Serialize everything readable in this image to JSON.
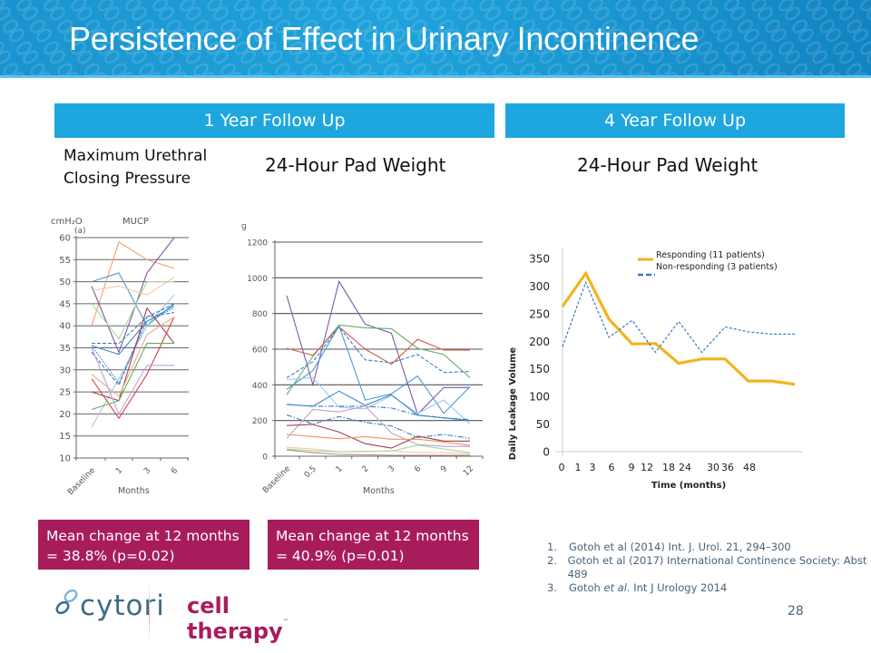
{
  "header": {
    "title": "Persistence of Effect in Urinary Incontinence"
  },
  "sections": {
    "one_year_label": "1 Year Follow Up",
    "four_year_label": "4 Year Follow Up"
  },
  "subtitles": {
    "mucp_line1": "Maximum Urethral",
    "mucp_line2": "Closing Pressure",
    "pad_weight_1yr": "24-Hour Pad Weight",
    "pad_weight_4yr": "24-Hour Pad Weight"
  },
  "result_boxes": [
    {
      "line1": "Mean change at 12 months",
      "line2": "= 38.8% (p=0.02)"
    },
    {
      "line1": "Mean change at 12 months",
      "line2": "= 40.9% (p=0.01)"
    }
  ],
  "references": [
    {
      "num": "1.",
      "text": "Gotoh et al (2014) Int. J. Urol. 21, 294–300"
    },
    {
      "num": "2.",
      "text": "Gotoh et al (2017) International Continence Society: Abst 489"
    },
    {
      "num": "3.",
      "text_before": "Gotoh ",
      "text_italic": "et al.",
      "text_after": " Int J Urology 2014"
    }
  ],
  "page_number": "28",
  "logo": {
    "brand": "cytori",
    "tagline": "cell therapy",
    "tm": "™"
  },
  "chart_data": [
    {
      "id": "mucp",
      "type": "line",
      "title": "MUCP",
      "panel_label": "(a)",
      "ylabel": "cmH₂O",
      "xlabel": "Months",
      "categories": [
        "Baseline",
        "1",
        "3",
        "6"
      ],
      "yticks": [
        10,
        15,
        20,
        25,
        30,
        35,
        40,
        45,
        50,
        55,
        60
      ],
      "ylim": [
        10,
        60
      ],
      "grid": true,
      "series": [
        {
          "color": "#f0a070",
          "dash": "solid",
          "values": [
            40,
            59,
            55,
            53
          ]
        },
        {
          "color": "#7a5aa8",
          "dash": "solid",
          "values": [
            49,
            34,
            52,
            60
          ]
        },
        {
          "color": "#4a9ad0",
          "dash": "solid",
          "values": [
            50,
            52,
            40,
            45
          ]
        },
        {
          "color": "#f5c8a8",
          "dash": "solid",
          "values": [
            48,
            49,
            47,
            51
          ]
        },
        {
          "color": "#a8d8a0",
          "dash": "solid",
          "values": [
            45,
            37,
            50,
            50
          ]
        },
        {
          "color": "#a0c8e8",
          "dash": "solid",
          "values": [
            17,
            28,
            40,
            47
          ]
        },
        {
          "color": "#3a7ec0",
          "dash": "dash",
          "values": [
            36,
            36,
            42,
            45
          ]
        },
        {
          "color": "#3a7ec0",
          "dash": "dash",
          "values": [
            34,
            26.5,
            42,
            43
          ]
        },
        {
          "color": "#3a7ec0",
          "dash": "dot",
          "values": [
            35.5,
            27,
            41,
            44
          ]
        },
        {
          "color": "#3a8ac8",
          "dash": "solid",
          "values": [
            35.5,
            33.5,
            41,
            44.5
          ]
        },
        {
          "color": "#a04050",
          "dash": "solid",
          "values": [
            25,
            23,
            44,
            36
          ]
        },
        {
          "color": "#d04040",
          "dash": "solid",
          "values": [
            28,
            19,
            29,
            42
          ]
        },
        {
          "color": "#f0a888",
          "dash": "solid",
          "values": [
            29,
            24,
            38,
            42
          ]
        },
        {
          "color": "#c0a0d8",
          "dash": "solid",
          "values": [
            35,
            20,
            31,
            31
          ]
        },
        {
          "color": "#60b060",
          "dash": "solid",
          "values": [
            21,
            23,
            36,
            36
          ]
        }
      ]
    },
    {
      "id": "padweight_1yr",
      "type": "line",
      "ylabel": "g",
      "xlabel": "Months",
      "categories": [
        "Baseline",
        "0.5",
        "1",
        "2",
        "3",
        "6",
        "9",
        "12"
      ],
      "yticks": [
        0,
        200,
        400,
        600,
        800,
        1000,
        1200
      ],
      "ylim": [
        0,
        1200
      ],
      "grid": true,
      "series": [
        {
          "color": "#7a5aa8",
          "dash": "solid",
          "values": [
            900,
            400,
            980,
            740,
            690,
            235,
            385,
            385
          ]
        },
        {
          "color": "#60b060",
          "dash": "solid",
          "values": [
            345,
            560,
            735,
            720,
            715,
            605,
            570,
            440
          ]
        },
        {
          "color": "#d85a4a",
          "dash": "solid",
          "values": [
            605,
            565,
            725,
            600,
            515,
            655,
            595,
            595
          ]
        },
        {
          "color": "#3a7ec0",
          "dash": "dash",
          "values": [
            440,
            530,
            725,
            540,
            525,
            570,
            470,
            475
          ]
        },
        {
          "color": "#4a9ad0",
          "dash": "solid",
          "values": [
            375,
            480,
            730,
            315,
            350,
            450,
            240,
            390
          ]
        },
        {
          "color": "#a0c8e8",
          "dash": "solid",
          "values": [
            430,
            440,
            275,
            265,
            340,
            240,
            315,
            180
          ]
        },
        {
          "color": "#3a8ac8",
          "dash": "solid",
          "values": [
            290,
            280,
            365,
            285,
            345,
            230,
            215,
            200
          ]
        },
        {
          "color": "#3a7ec0",
          "dash": "dashdot",
          "values": [
            290,
            280,
            280,
            280,
            270,
            230,
            215,
            205
          ]
        },
        {
          "color": "#3a7ec0",
          "dash": "dashdot",
          "values": [
            232,
            180,
            222,
            190,
            170,
            105,
            122,
            100
          ]
        },
        {
          "color": "#c0a0d8",
          "dash": "solid",
          "values": [
            100,
            262,
            248,
            280,
            130,
            65,
            55,
            55
          ]
        },
        {
          "color": "#a04050",
          "dash": "solid",
          "values": [
            172,
            178,
            135,
            70,
            45,
            112,
            85,
            85
          ]
        },
        {
          "color": "#f09060",
          "dash": "solid",
          "values": [
            122,
            110,
            98,
            110,
            95,
            95,
            80,
            60
          ]
        },
        {
          "color": "#f5c8a8",
          "dash": "solid",
          "values": [
            50,
            40,
            25,
            25,
            30,
            20,
            20,
            15
          ]
        },
        {
          "color": "#a8d8a0",
          "dash": "solid",
          "values": [
            40,
            30,
            25,
            28,
            28,
            62,
            40,
            20
          ]
        },
        {
          "color": "#b09080",
          "dash": "solid",
          "values": [
            35,
            20,
            10,
            8,
            5,
            5,
            5,
            5
          ]
        }
      ]
    },
    {
      "id": "padweight_4yr",
      "type": "line",
      "ylabel": "Daily Leakage Volume",
      "xlabel": "Time (months)",
      "x_tick_labels": [
        "0",
        "1",
        "3",
        "6",
        "9",
        "12",
        "18",
        "24",
        "30",
        "36",
        "48"
      ],
      "yticks": [
        0,
        50,
        100,
        150,
        200,
        250,
        300,
        350
      ],
      "ylim": [
        0,
        350
      ],
      "grid": false,
      "legend_position": "top-right",
      "series": [
        {
          "name": "Responding (11 patients)",
          "color": "#f2b320",
          "dash": "solid",
          "values": [
            263,
            323,
            240,
            195,
            196,
            160,
            168,
            168,
            128,
            128,
            122
          ]
        },
        {
          "name": "Non-responding (3 patients)",
          "color": "#3a78c2",
          "dash": "dash",
          "values": [
            190,
            307,
            207,
            238,
            180,
            236,
            180,
            226,
            217,
            213,
            213
          ]
        }
      ]
    }
  ]
}
